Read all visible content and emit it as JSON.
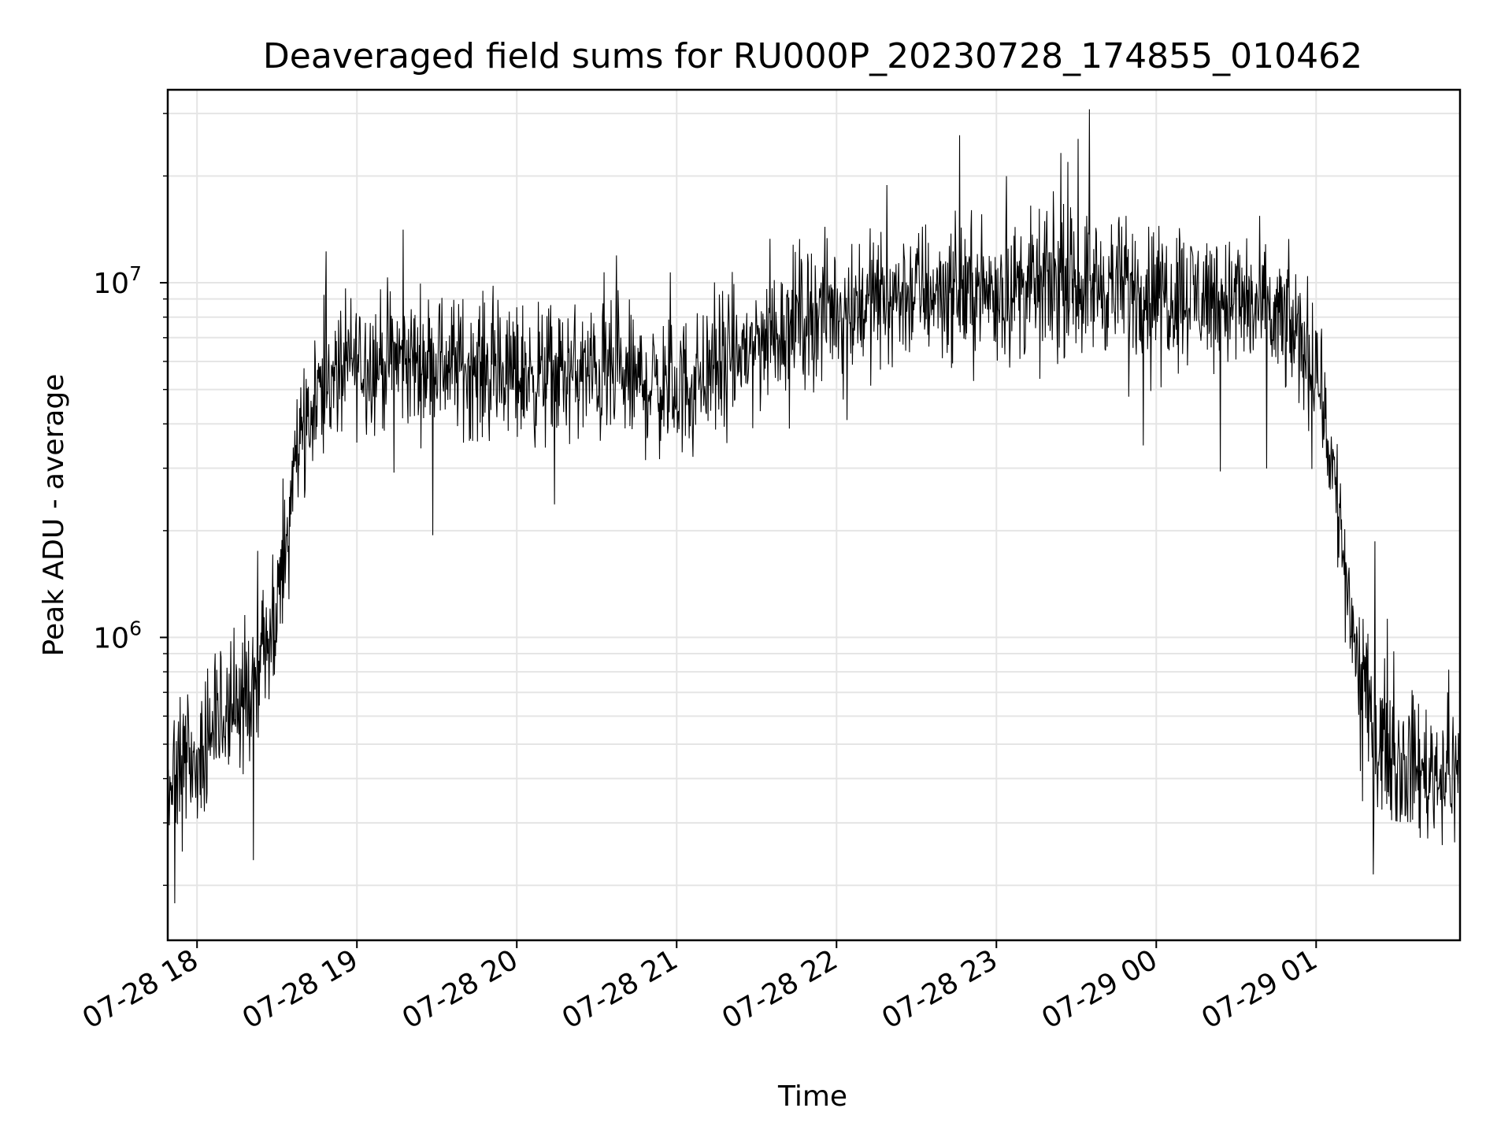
{
  "chart_data": {
    "type": "line",
    "title": "Deaveraged field sums for RU000P_20230728_174855_010462",
    "xlabel": "Time",
    "ylabel": "Peak ADU - average",
    "yscale": "log",
    "ylim": [
      140000,
      35000000
    ],
    "xlim": [
      "2023-07-28 17:49",
      "2023-07-29 01:54"
    ],
    "grid": true,
    "x_ticks": [
      "07-28 18",
      "07-28 19",
      "07-28 20",
      "07-28 21",
      "07-28 22",
      "07-28 23",
      "07-29 00",
      "07-29 01"
    ],
    "y_ticks": [
      {
        "base": "10",
        "exponent": "6",
        "value": 1000000
      },
      {
        "base": "10",
        "exponent": "7",
        "value": 10000000
      }
    ],
    "series": [
      {
        "color": "#000000",
        "x": [
          "2023-07-28 17:49",
          "2023-07-28 17:55",
          "2023-07-28 18:00",
          "2023-07-28 18:10",
          "2023-07-28 18:20",
          "2023-07-28 18:30",
          "2023-07-28 18:37",
          "2023-07-28 18:45",
          "2023-07-28 19:00",
          "2023-07-28 19:30",
          "2023-07-28 20:00",
          "2023-07-28 20:30",
          "2023-07-28 21:00",
          "2023-07-28 21:20",
          "2023-07-28 21:45",
          "2023-07-28 22:00",
          "2023-07-28 22:30",
          "2023-07-28 23:00",
          "2023-07-28 23:30",
          "2023-07-29 00:00",
          "2023-07-29 00:30",
          "2023-07-29 00:50",
          "2023-07-29 01:00",
          "2023-07-29 01:05",
          "2023-07-29 01:10",
          "2023-07-29 01:15",
          "2023-07-29 01:20",
          "2023-07-29 01:30",
          "2023-07-29 01:40",
          "2023-07-29 01:54"
        ],
        "y": [
          400000,
          420000,
          420000,
          600000,
          700000,
          1100000,
          3500000,
          5000000,
          6000000,
          6000000,
          5500000,
          5500000,
          5000000,
          6000000,
          8000000,
          8500000,
          9500000,
          9500000,
          10000000,
          9500000,
          9000000,
          7500000,
          6000000,
          3500000,
          1800000,
          900000,
          600000,
          450000,
          420000,
          420000
        ]
      }
    ]
  }
}
